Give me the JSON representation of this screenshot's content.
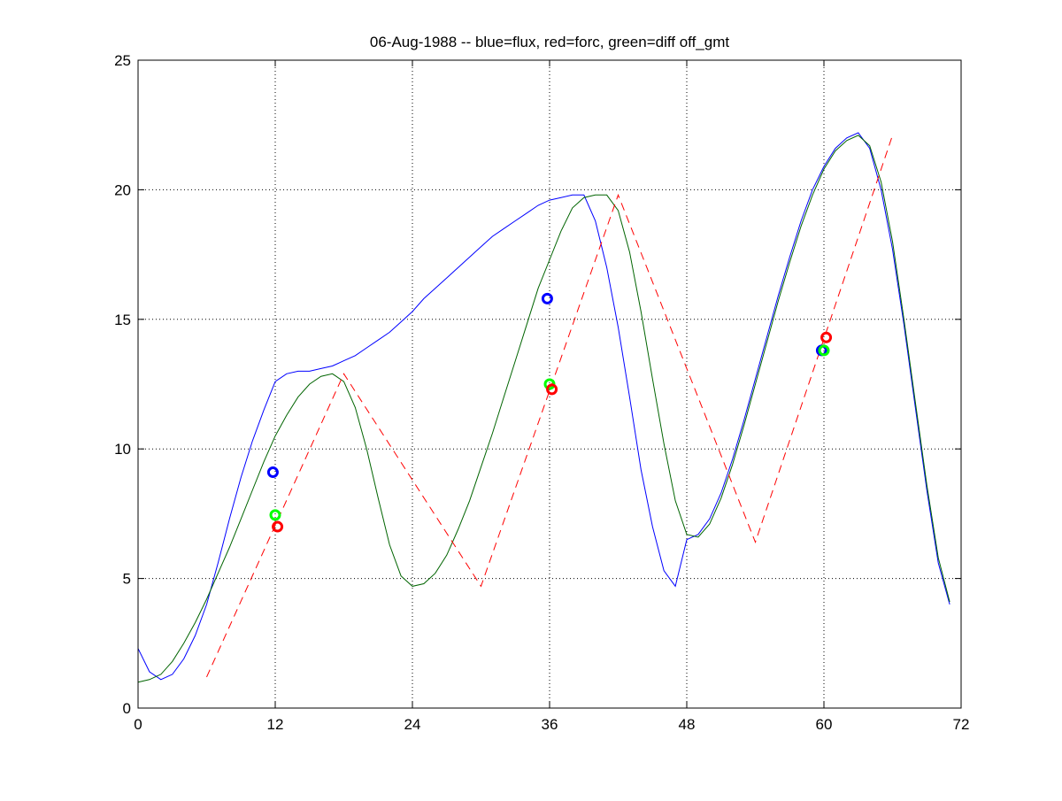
{
  "chart_data": {
    "type": "line",
    "title": "06-Aug-1988 -- blue=flux, red=forc, green=diff off_gmt",
    "xlabel": "",
    "ylabel": "",
    "xlim": [
      0,
      72
    ],
    "ylim": [
      0,
      25
    ],
    "x_ticks": [
      0,
      12,
      24,
      36,
      48,
      60,
      72
    ],
    "y_ticks": [
      0,
      5,
      10,
      15,
      20,
      25
    ],
    "grid": true,
    "colors": {
      "blue": "#0000ff",
      "red": "#ff0000",
      "green": "#006400",
      "marker_blue": "#0000ff",
      "marker_red": "#ff0000",
      "marker_green": "#00ff00"
    },
    "series": [
      {
        "color_key": "blue",
        "style": "solid",
        "points": [
          [
            0,
            2.3
          ],
          [
            1,
            1.4
          ],
          [
            2,
            1.1
          ],
          [
            3,
            1.3
          ],
          [
            4,
            1.9
          ],
          [
            5,
            2.8
          ],
          [
            6,
            4.0
          ],
          [
            7,
            5.6
          ],
          [
            8,
            7.3
          ],
          [
            9,
            8.9
          ],
          [
            10,
            10.3
          ],
          [
            11,
            11.5
          ],
          [
            12,
            12.6
          ],
          [
            13,
            12.9
          ],
          [
            14,
            13.0
          ],
          [
            15,
            13.0
          ],
          [
            16,
            13.1
          ],
          [
            17,
            13.2
          ],
          [
            18,
            13.4
          ],
          [
            19,
            13.6
          ],
          [
            20,
            13.9
          ],
          [
            21,
            14.2
          ],
          [
            22,
            14.5
          ],
          [
            23,
            14.9
          ],
          [
            24,
            15.3
          ],
          [
            25,
            15.8
          ],
          [
            26,
            16.2
          ],
          [
            27,
            16.6
          ],
          [
            28,
            17.0
          ],
          [
            29,
            17.4
          ],
          [
            30,
            17.8
          ],
          [
            31,
            18.2
          ],
          [
            32,
            18.5
          ],
          [
            33,
            18.8
          ],
          [
            34,
            19.1
          ],
          [
            35,
            19.4
          ],
          [
            36,
            19.6
          ],
          [
            37,
            19.7
          ],
          [
            38,
            19.8
          ],
          [
            39,
            19.8
          ],
          [
            40,
            18.8
          ],
          [
            41,
            17.0
          ],
          [
            42,
            14.7
          ],
          [
            43,
            12.0
          ],
          [
            44,
            9.2
          ],
          [
            45,
            7.0
          ],
          [
            46,
            5.3
          ],
          [
            47,
            4.7
          ],
          [
            48,
            6.5
          ],
          [
            49,
            6.7
          ],
          [
            50,
            7.3
          ],
          [
            51,
            8.3
          ],
          [
            52,
            9.6
          ],
          [
            53,
            11.1
          ],
          [
            54,
            12.7
          ],
          [
            55,
            14.3
          ],
          [
            56,
            15.9
          ],
          [
            57,
            17.4
          ],
          [
            58,
            18.8
          ],
          [
            59,
            20.0
          ],
          [
            60,
            20.9
          ],
          [
            61,
            21.6
          ],
          [
            62,
            22.0
          ],
          [
            63,
            22.2
          ],
          [
            64,
            21.6
          ],
          [
            65,
            20.0
          ],
          [
            66,
            17.7
          ],
          [
            67,
            14.8
          ],
          [
            68,
            11.6
          ],
          [
            69,
            8.4
          ],
          [
            70,
            5.6
          ],
          [
            71,
            4.0
          ]
        ]
      },
      {
        "color_key": "green",
        "style": "solid",
        "points": [
          [
            0,
            1.0
          ],
          [
            1,
            1.1
          ],
          [
            2,
            1.3
          ],
          [
            3,
            1.8
          ],
          [
            4,
            2.5
          ],
          [
            5,
            3.3
          ],
          [
            6,
            4.2
          ],
          [
            7,
            5.2
          ],
          [
            8,
            6.2
          ],
          [
            9,
            7.3
          ],
          [
            10,
            8.4
          ],
          [
            11,
            9.5
          ],
          [
            12,
            10.5
          ],
          [
            13,
            11.3
          ],
          [
            14,
            12.0
          ],
          [
            15,
            12.5
          ],
          [
            16,
            12.8
          ],
          [
            17,
            12.9
          ],
          [
            18,
            12.6
          ],
          [
            19,
            11.6
          ],
          [
            20,
            10.0
          ],
          [
            21,
            8.1
          ],
          [
            22,
            6.3
          ],
          [
            23,
            5.1
          ],
          [
            24,
            4.7
          ],
          [
            25,
            4.8
          ],
          [
            26,
            5.2
          ],
          [
            27,
            5.9
          ],
          [
            28,
            6.9
          ],
          [
            29,
            8.0
          ],
          [
            30,
            9.3
          ],
          [
            31,
            10.6
          ],
          [
            32,
            12.0
          ],
          [
            33,
            13.4
          ],
          [
            34,
            14.8
          ],
          [
            35,
            16.2
          ],
          [
            36,
            17.3
          ],
          [
            37,
            18.4
          ],
          [
            38,
            19.3
          ],
          [
            39,
            19.7
          ],
          [
            40,
            19.8
          ],
          [
            41,
            19.8
          ],
          [
            42,
            19.2
          ],
          [
            43,
            17.6
          ],
          [
            44,
            15.3
          ],
          [
            45,
            12.7
          ],
          [
            46,
            10.2
          ],
          [
            47,
            8.0
          ],
          [
            48,
            6.7
          ],
          [
            49,
            6.6
          ],
          [
            50,
            7.1
          ],
          [
            51,
            8.1
          ],
          [
            52,
            9.4
          ],
          [
            53,
            10.9
          ],
          [
            54,
            12.5
          ],
          [
            55,
            14.1
          ],
          [
            56,
            15.7
          ],
          [
            57,
            17.2
          ],
          [
            58,
            18.6
          ],
          [
            59,
            19.8
          ],
          [
            60,
            20.8
          ],
          [
            61,
            21.5
          ],
          [
            62,
            21.9
          ],
          [
            63,
            22.1
          ],
          [
            64,
            21.7
          ],
          [
            65,
            20.3
          ],
          [
            66,
            18.0
          ],
          [
            67,
            15.0
          ],
          [
            68,
            11.8
          ],
          [
            69,
            8.6
          ],
          [
            70,
            5.8
          ],
          [
            71,
            4.1
          ]
        ]
      },
      {
        "color_key": "red",
        "style": "dashed",
        "points": [
          [
            6,
            1.2
          ],
          [
            18,
            12.9
          ],
          [
            30,
            4.7
          ],
          [
            42,
            19.8
          ],
          [
            54,
            6.4
          ],
          [
            66,
            22.1
          ]
        ]
      }
    ],
    "markers": [
      {
        "color_key": "marker_blue",
        "x": 11.8,
        "y": 9.1
      },
      {
        "color_key": "marker_green",
        "x": 12.0,
        "y": 7.45
      },
      {
        "color_key": "marker_red",
        "x": 12.2,
        "y": 7.0
      },
      {
        "color_key": "marker_blue",
        "x": 35.8,
        "y": 15.8
      },
      {
        "color_key": "marker_green",
        "x": 36.0,
        "y": 12.5
      },
      {
        "color_key": "marker_red",
        "x": 36.2,
        "y": 12.3
      },
      {
        "color_key": "marker_blue",
        "x": 59.8,
        "y": 13.8
      },
      {
        "color_key": "marker_green",
        "x": 60.0,
        "y": 13.8
      },
      {
        "color_key": "marker_red",
        "x": 60.2,
        "y": 14.3
      }
    ]
  }
}
